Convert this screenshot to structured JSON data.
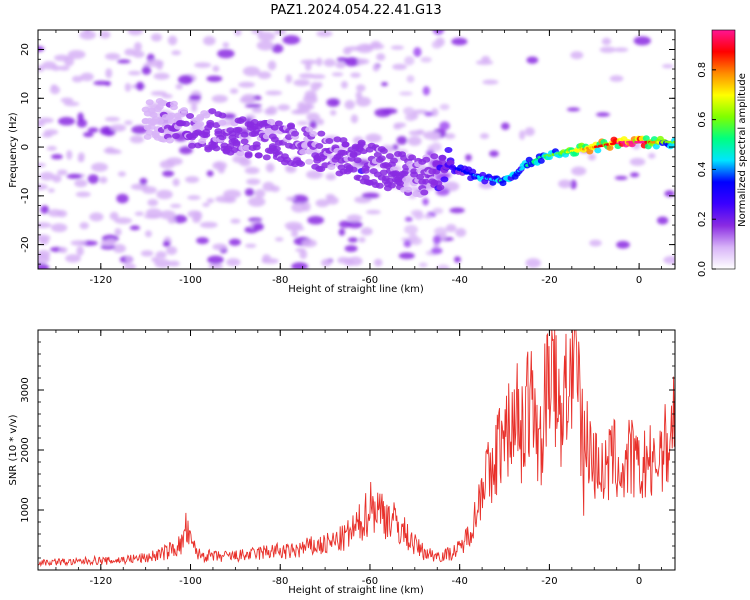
{
  "chart_data": [
    {
      "type": "heatmap",
      "title": "PAZ1.2024.054.22.41.G13",
      "xlabel": "Height of straight line (km)",
      "ylabel": "Frequency (Hz)",
      "xlim": [
        -134,
        8
      ],
      "ylim": [
        -25,
        24
      ],
      "xticks": [
        -120,
        -100,
        -80,
        -60,
        -40,
        -20,
        0
      ],
      "yticks": [
        -20,
        -10,
        0,
        10,
        20
      ],
      "colorbar": {
        "label": "Normalized spectral amplitude",
        "ticks": [
          0.0,
          0.2,
          0.4,
          0.6,
          0.8
        ],
        "range": [
          0,
          0.96
        ],
        "colormap": [
          "#ffffff",
          "#d8b4f8",
          "#8a2be2",
          "#3b00ff",
          "#0000ff",
          "#00e5ff",
          "#00ff80",
          "#7fff00",
          "#ffff00",
          "#ff8c00",
          "#ff0000",
          "#ff1493"
        ]
      },
      "ridge": [
        {
          "x": -108,
          "y": 6,
          "amp": 0.12
        },
        {
          "x": -100,
          "y": 4,
          "amp": 0.15
        },
        {
          "x": -92,
          "y": 3,
          "amp": 0.2
        },
        {
          "x": -80,
          "y": 1,
          "amp": 0.17
        },
        {
          "x": -70,
          "y": -1,
          "amp": 0.16
        },
        {
          "x": -62,
          "y": -3,
          "amp": 0.2
        },
        {
          "x": -55,
          "y": -5,
          "amp": 0.2
        },
        {
          "x": -48,
          "y": -6,
          "amp": 0.16
        },
        {
          "x": -42,
          "y": -4,
          "amp": 0.25
        },
        {
          "x": -36,
          "y": -6,
          "amp": 0.38
        },
        {
          "x": -31,
          "y": -7,
          "amp": 0.44
        },
        {
          "x": -27,
          "y": -5,
          "amp": 0.4
        },
        {
          "x": -22,
          "y": -2,
          "amp": 0.5
        },
        {
          "x": -16,
          "y": -1,
          "amp": 0.6
        },
        {
          "x": -10,
          "y": 0,
          "amp": 0.75
        },
        {
          "x": -4,
          "y": 1,
          "amp": 0.85
        },
        {
          "x": 0,
          "y": 1,
          "amp": 0.92
        },
        {
          "x": 6,
          "y": 1,
          "amp": 0.55
        }
      ]
    },
    {
      "type": "line",
      "xlabel": "Height of straight line (km)",
      "ylabel": "SNR (10 * v/v)",
      "xlim": [
        -134,
        8
      ],
      "ylim": [
        0,
        4000
      ],
      "xticks": [
        -120,
        -100,
        -80,
        -60,
        -40,
        -20,
        0
      ],
      "yticks": [
        1000,
        2000,
        3000
      ],
      "color": "#e8302a",
      "series": [
        {
          "x": [
            -134,
            -130,
            -126,
            -122,
            -118,
            -114,
            -110,
            -106,
            -102,
            -101,
            -100,
            -98,
            -94,
            -90,
            -86,
            -82,
            -78,
            -74,
            -70,
            -66,
            -63,
            -61,
            -60,
            -58,
            -56,
            -54,
            -52,
            -50,
            -48,
            -46,
            -44,
            -42,
            -40,
            -38,
            -36,
            -35,
            -34,
            -33,
            -32,
            -31,
            -30,
            -29,
            -28,
            -27,
            -26,
            -25,
            -24,
            -23,
            -22,
            -21,
            -20,
            -19,
            -18,
            -17,
            -16,
            -15,
            -14,
            -13,
            -12,
            -11,
            -10,
            -9,
            -8,
            -7,
            -6,
            -5,
            -4,
            -3,
            -2,
            -1,
            0,
            1,
            2,
            3,
            4,
            5,
            6,
            7,
            8
          ],
          "y": [
            120,
            140,
            130,
            160,
            150,
            180,
            200,
            280,
            420,
            700,
            450,
            250,
            220,
            230,
            260,
            320,
            300,
            380,
            420,
            520,
            700,
            900,
            1100,
            1000,
            900,
            750,
            600,
            420,
            300,
            250,
            240,
            280,
            350,
            600,
            1000,
            1500,
            1700,
            1400,
            1900,
            2200,
            2000,
            2400,
            2600,
            2900,
            2300,
            2600,
            2800,
            2500,
            2000,
            3000,
            3400,
            3100,
            2800,
            2600,
            3100,
            3400,
            3300,
            2600,
            2200,
            2100,
            1700,
            1900,
            1500,
            1700,
            1900,
            1800,
            1600,
            1700,
            1900,
            1800,
            1600,
            1700,
            1900,
            1600,
            1800,
            2100,
            2000,
            2300,
            2700
          ]
        }
      ]
    }
  ]
}
